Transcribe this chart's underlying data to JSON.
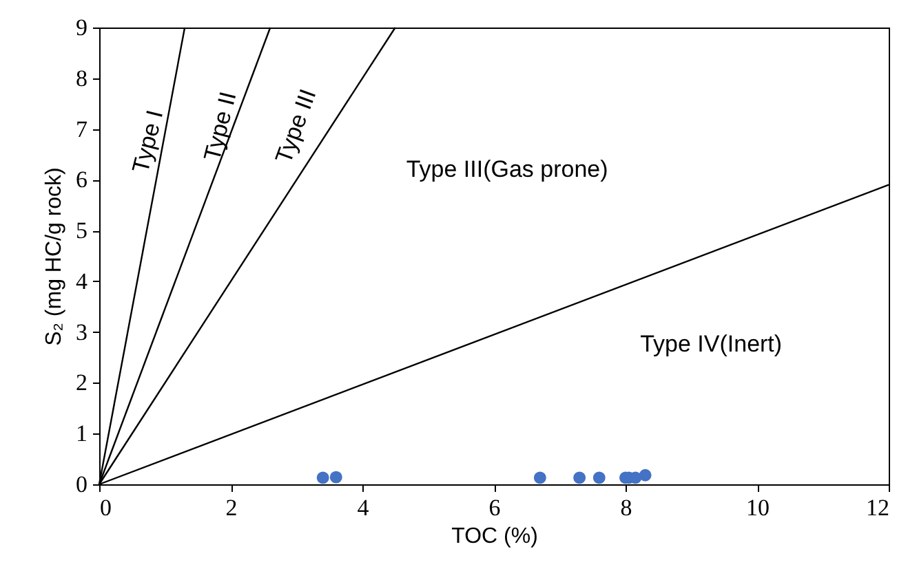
{
  "chart_data": {
    "type": "scatter",
    "xlabel": "TOC (%)",
    "ylabel": "S₂ (mg HC/g rock)",
    "xlim": [
      0,
      12
    ],
    "ylim": [
      0,
      9
    ],
    "xticks": [
      0,
      2,
      4,
      6,
      8,
      10,
      12
    ],
    "yticks": [
      0,
      1,
      2,
      3,
      4,
      5,
      6,
      7,
      8,
      9
    ],
    "grid": false,
    "annotations": [
      "Type I",
      "Type II",
      "Type III",
      "Type III(Gas prone)",
      "Type IV(Inert)"
    ],
    "series": [
      {
        "type": "line",
        "color": "#000000",
        "x": [
          0,
          1.3
        ],
        "values": [
          0,
          9
        ]
      },
      {
        "type": "line",
        "color": "#000000",
        "x": [
          0,
          2.6
        ],
        "values": [
          0,
          9
        ]
      },
      {
        "type": "line",
        "color": "#000000",
        "x": [
          0,
          4.5
        ],
        "values": [
          0,
          9
        ]
      },
      {
        "type": "line",
        "color": "#000000",
        "x": [
          0,
          12
        ],
        "values": [
          0,
          5.9
        ]
      },
      {
        "marker": "circle",
        "color": "#4472c4",
        "x": [
          3.4,
          3.6,
          6.7,
          7.3,
          7.6,
          8.0,
          8.05,
          8.15,
          8.3
        ],
        "values": [
          0.13,
          0.14,
          0.13,
          0.13,
          0.13,
          0.13,
          0.13,
          0.13,
          0.18
        ]
      }
    ]
  }
}
